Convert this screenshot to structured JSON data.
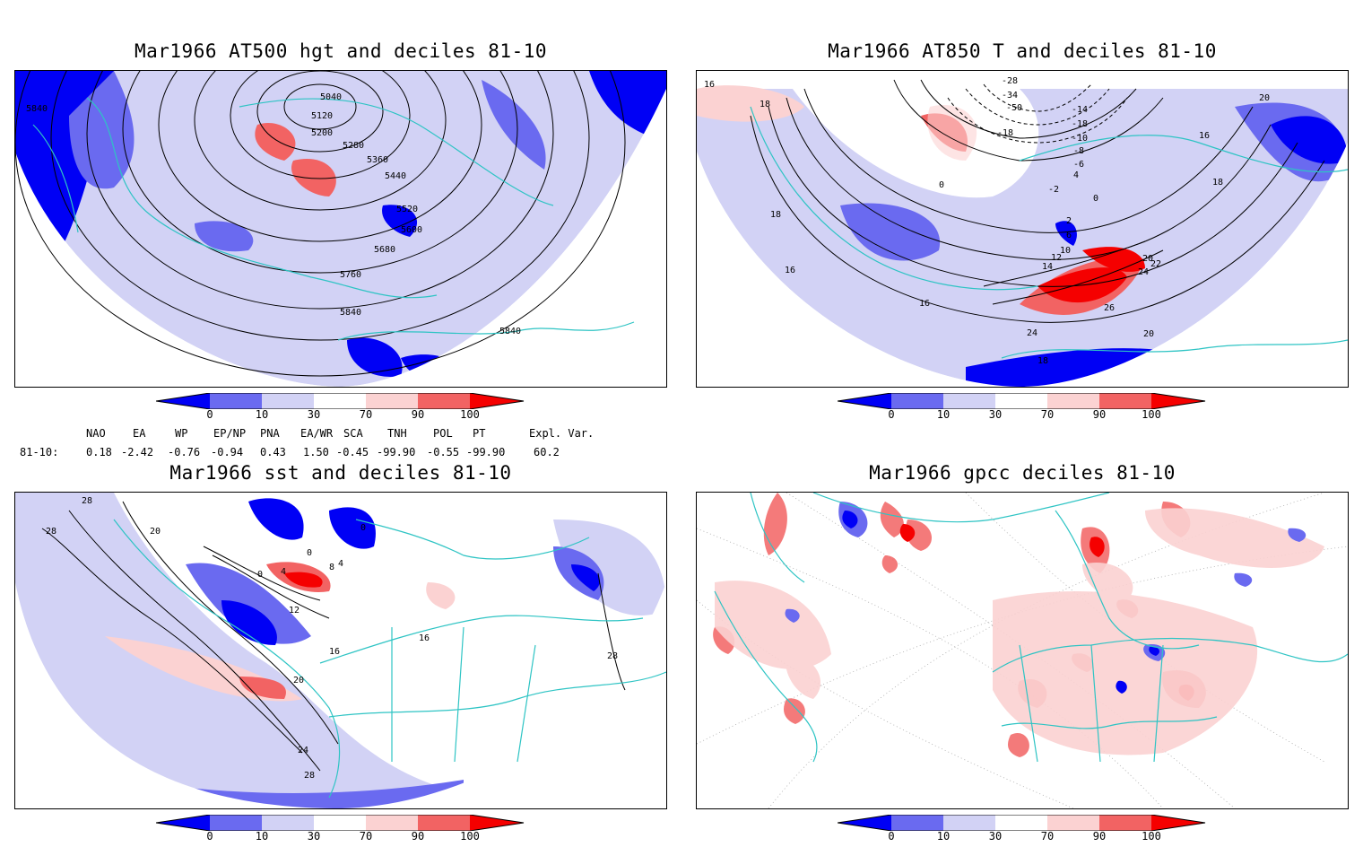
{
  "panels": [
    {
      "title": "Mar1966 AT500 hgt and deciles 81-10",
      "contour_labels": [
        "5040",
        "5120",
        "5200",
        "5280",
        "5360",
        "5440",
        "5520",
        "5600",
        "5680",
        "5760",
        "5840",
        "5840",
        "5840"
      ]
    },
    {
      "title": "Mar1966 AT850 T and deciles 81-10",
      "contour_labels": [
        "-28",
        "-34",
        "-50",
        "-18",
        "-14",
        "-18",
        "-10",
        "-8",
        "-6",
        "0",
        "-2",
        "0",
        "2",
        "4",
        "6",
        "10",
        "12",
        "14",
        "16",
        "16",
        "18",
        "18",
        "18",
        "20",
        "20",
        "22",
        "24",
        "24",
        "26",
        "16",
        "16",
        "18",
        "20"
      ]
    },
    {
      "title": "Mar1966 sst and deciles 81-10",
      "contour_labels": [
        "28",
        "28",
        "20",
        "0",
        "0",
        "4",
        "8",
        "4",
        "0",
        "12",
        "16",
        "16",
        "20",
        "24",
        "28",
        "28"
      ]
    },
    {
      "title": "Mar1966 gpcc deciles 81-10",
      "contour_labels": []
    }
  ],
  "colorbar": {
    "ticks": [
      "0",
      "10",
      "30",
      "70",
      "90",
      "100"
    ],
    "colors": [
      "#0000f5",
      "#6a6af0",
      "#d2d2f5",
      "#ffffff",
      "#fbd2d2",
      "#f26363",
      "#f50000"
    ]
  },
  "indices": {
    "headers": [
      "NAO",
      "EA",
      "WP",
      "EP/NP",
      "PNA",
      "EA/WR",
      "SCA",
      "TNH",
      "POL",
      "PT",
      "Expl. Var."
    ],
    "row_label": "81-10:",
    "values": [
      "0.18",
      "-2.42",
      "-0.76",
      "-0.94",
      "0.43",
      "1.50",
      "-0.45",
      "-99.90",
      "-0.55",
      "-99.90",
      "60.2"
    ]
  }
}
